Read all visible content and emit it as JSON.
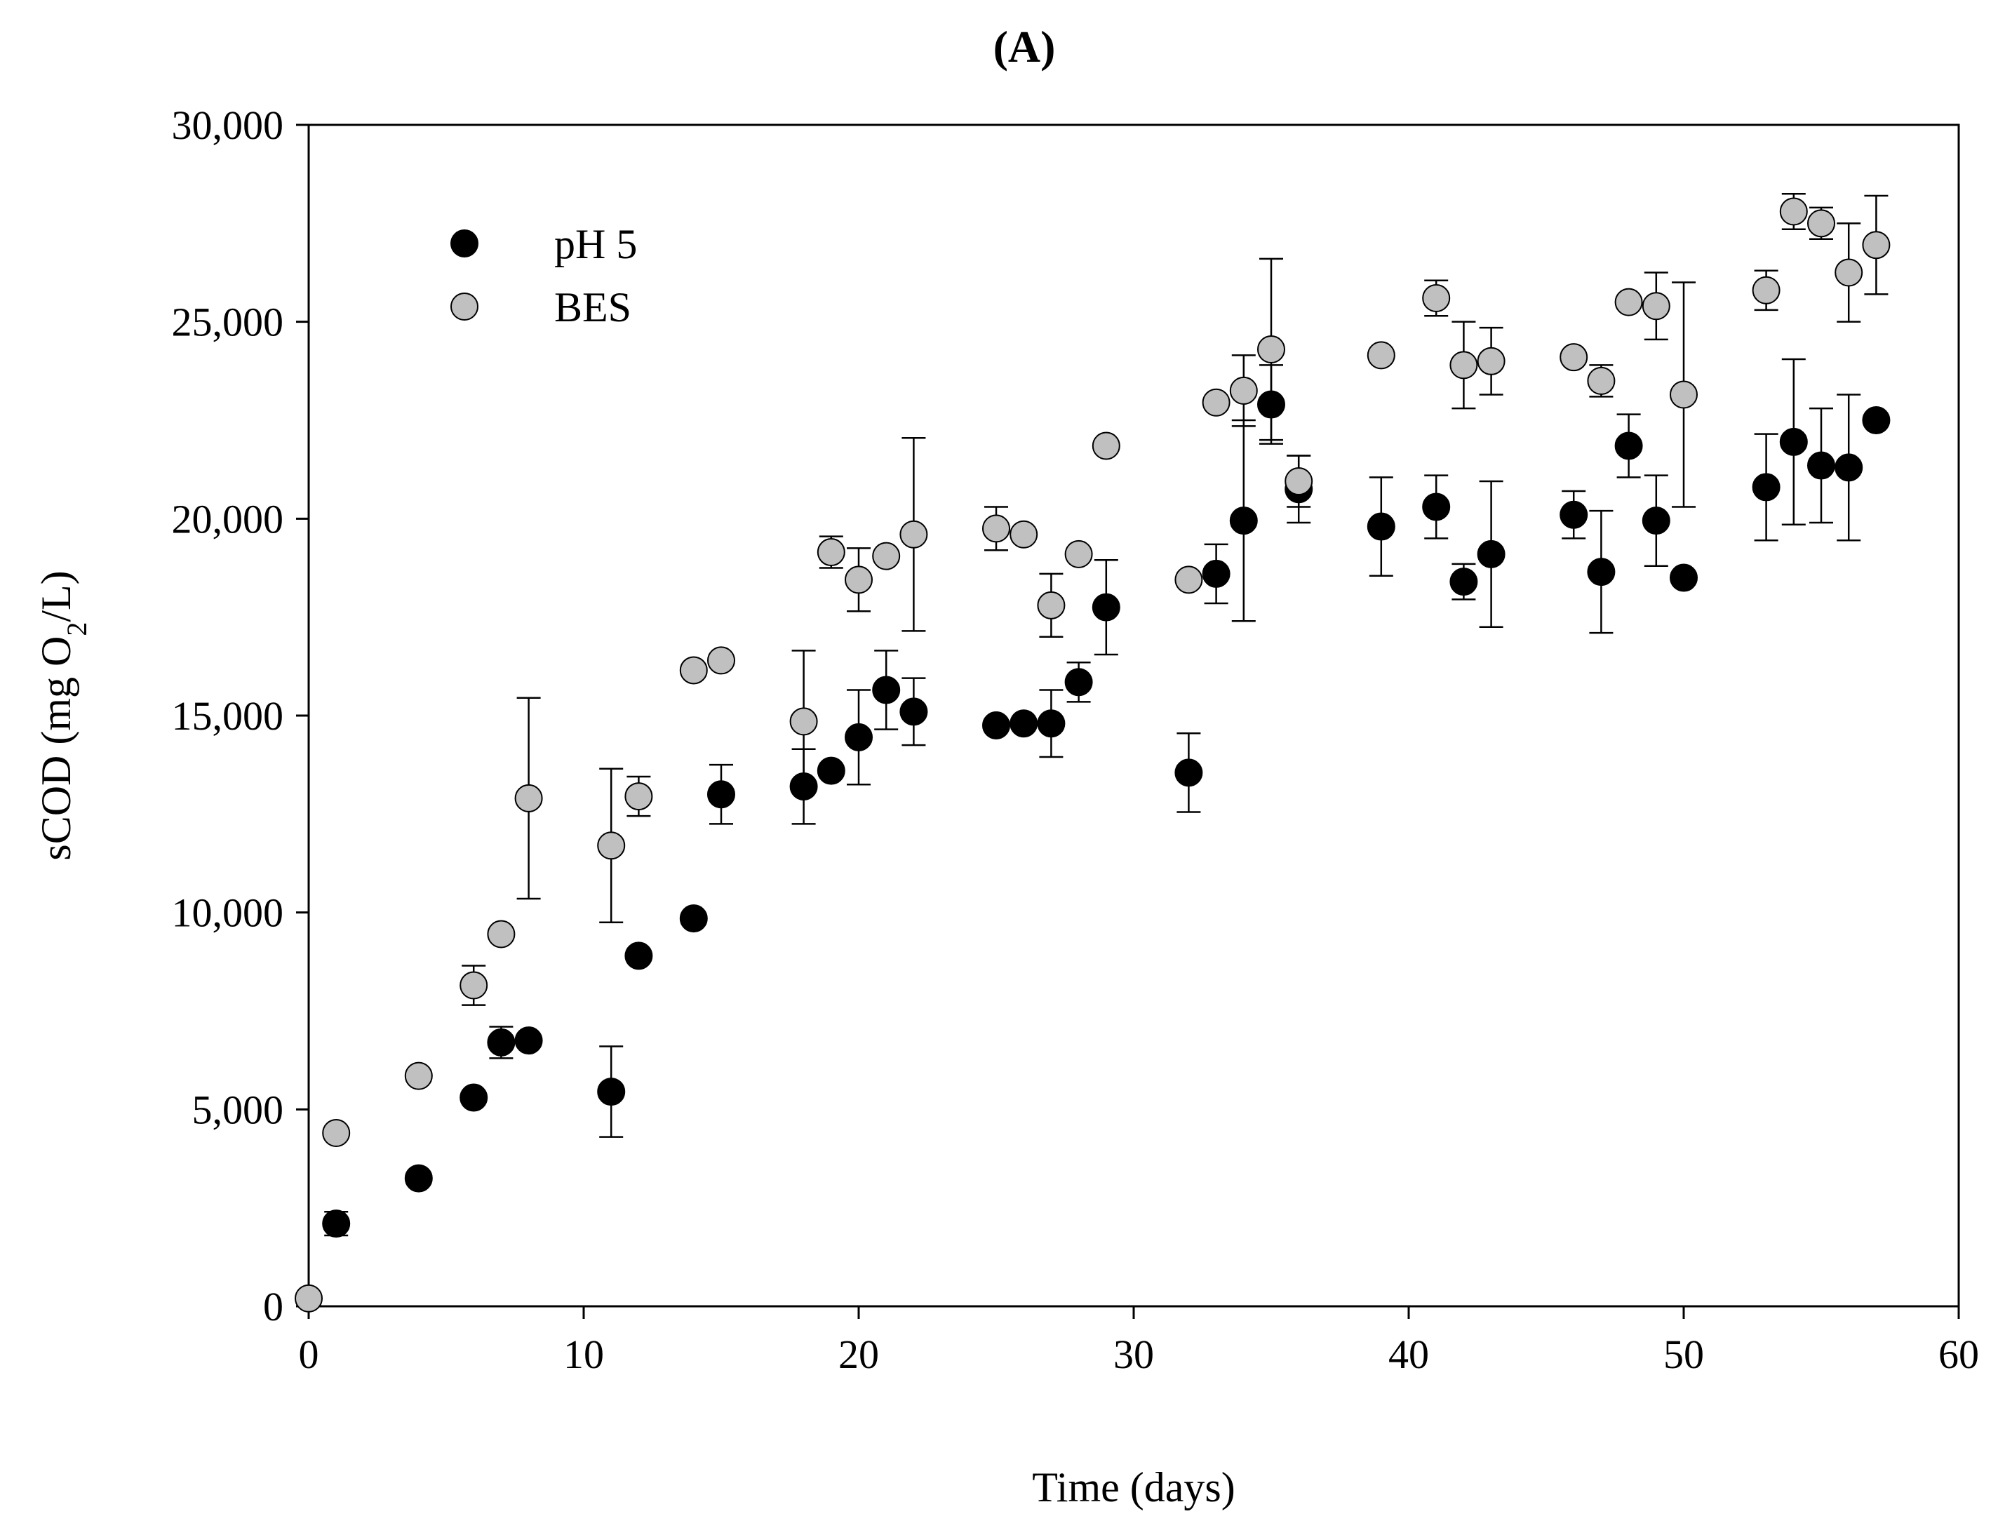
{
  "chart_data": {
    "type": "scatter",
    "panel_label": "(A)",
    "xlabel": "Time (days)",
    "ylabel": {
      "prefix": "sCOD (mg O",
      "subscript": "2",
      "suffix": "/L)"
    },
    "xlim": [
      0,
      60
    ],
    "ylim": [
      0,
      30000
    ],
    "x_ticks": [
      0,
      10,
      20,
      30,
      40,
      50,
      60
    ],
    "x_tick_labels": [
      "0",
      "10",
      "20",
      "30",
      "40",
      "50",
      "60"
    ],
    "y_ticks": [
      0,
      5000,
      10000,
      15000,
      20000,
      25000,
      30000
    ],
    "y_tick_labels": [
      "0",
      "5,000",
      "10,000",
      "15,000",
      "20,000",
      "25,000",
      "30,000"
    ],
    "legend_position": "top-left",
    "colors": {
      "ph5": "#000000",
      "bes": "#c0c0c0",
      "axis": "#000000"
    },
    "series": [
      {
        "name": "pH 5",
        "key": "ph5",
        "points": [
          {
            "x": 1,
            "y": 2100,
            "err": 300
          },
          {
            "x": 4,
            "y": 3250,
            "err": 0
          },
          {
            "x": 6,
            "y": 5300,
            "err": 0
          },
          {
            "x": 7,
            "y": 6700,
            "err": 400
          },
          {
            "x": 8,
            "y": 6750,
            "err": 0
          },
          {
            "x": 11,
            "y": 5450,
            "err": 1150
          },
          {
            "x": 12,
            "y": 8900,
            "err": 0
          },
          {
            "x": 14,
            "y": 9850,
            "err": 0
          },
          {
            "x": 15,
            "y": 13000,
            "err": 750
          },
          {
            "x": 18,
            "y": 13200,
            "err": 950
          },
          {
            "x": 19,
            "y": 13600,
            "err": 0
          },
          {
            "x": 20,
            "y": 14450,
            "err": 1200
          },
          {
            "x": 21,
            "y": 15650,
            "err": 1000
          },
          {
            "x": 22,
            "y": 15100,
            "err": 850
          },
          {
            "x": 25,
            "y": 14750,
            "err": 0
          },
          {
            "x": 26,
            "y": 14800,
            "err": 0
          },
          {
            "x": 27,
            "y": 14800,
            "err": 850
          },
          {
            "x": 28,
            "y": 15850,
            "err": 500
          },
          {
            "x": 29,
            "y": 17750,
            "err": 1200
          },
          {
            "x": 32,
            "y": 13550,
            "err": 1000
          },
          {
            "x": 33,
            "y": 18600,
            "err": 750
          },
          {
            "x": 34,
            "y": 19950,
            "err": 2550
          },
          {
            "x": 35,
            "y": 22900,
            "err": 1000
          },
          {
            "x": 36,
            "y": 20750,
            "err": 850
          },
          {
            "x": 39,
            "y": 19800,
            "err": 1250
          },
          {
            "x": 41,
            "y": 20300,
            "err": 800
          },
          {
            "x": 42,
            "y": 18400,
            "err": 450
          },
          {
            "x": 43,
            "y": 19100,
            "err": 1850
          },
          {
            "x": 46,
            "y": 20100,
            "err": 600
          },
          {
            "x": 47,
            "y": 18650,
            "err": 1550
          },
          {
            "x": 48,
            "y": 21850,
            "err": 800
          },
          {
            "x": 49,
            "y": 19950,
            "err": 1150
          },
          {
            "x": 50,
            "y": 18500,
            "err": 0
          },
          {
            "x": 53,
            "y": 20800,
            "err": 1350
          },
          {
            "x": 54,
            "y": 21950,
            "err": 2100
          },
          {
            "x": 55,
            "y": 21350,
            "err": 1450
          },
          {
            "x": 56,
            "y": 21300,
            "err": 1850
          },
          {
            "x": 57,
            "y": 22500,
            "err": 0
          }
        ]
      },
      {
        "name": "BES",
        "key": "bes",
        "points": [
          {
            "x": 0,
            "y": 200,
            "err": 0
          },
          {
            "x": 1,
            "y": 4400,
            "err": 0
          },
          {
            "x": 4,
            "y": 5850,
            "err": 0
          },
          {
            "x": 6,
            "y": 8150,
            "err": 500
          },
          {
            "x": 7,
            "y": 9450,
            "err": 0
          },
          {
            "x": 8,
            "y": 12900,
            "err": 2550
          },
          {
            "x": 11,
            "y": 11700,
            "err": 1950
          },
          {
            "x": 12,
            "y": 12950,
            "err": 500
          },
          {
            "x": 14,
            "y": 16150,
            "err": 0
          },
          {
            "x": 15,
            "y": 16400,
            "err": 0
          },
          {
            "x": 18,
            "y": 14850,
            "err": 1800
          },
          {
            "x": 19,
            "y": 19150,
            "err": 400
          },
          {
            "x": 20,
            "y": 18450,
            "err": 800
          },
          {
            "x": 21,
            "y": 19050,
            "err": 0
          },
          {
            "x": 22,
            "y": 19600,
            "err": 2450
          },
          {
            "x": 25,
            "y": 19750,
            "err": 550
          },
          {
            "x": 26,
            "y": 19600,
            "err": 0
          },
          {
            "x": 27,
            "y": 17800,
            "err": 800
          },
          {
            "x": 28,
            "y": 19100,
            "err": 0
          },
          {
            "x": 29,
            "y": 21850,
            "err": 0
          },
          {
            "x": 32,
            "y": 18450,
            "err": 0
          },
          {
            "x": 33,
            "y": 22950,
            "err": 0
          },
          {
            "x": 34,
            "y": 23250,
            "err": 900
          },
          {
            "x": 35,
            "y": 24300,
            "err": 2300
          },
          {
            "x": 36,
            "y": 20950,
            "err": 650
          },
          {
            "x": 39,
            "y": 24150,
            "err": 0
          },
          {
            "x": 41,
            "y": 25600,
            "err": 450
          },
          {
            "x": 42,
            "y": 23900,
            "err": 1100
          },
          {
            "x": 43,
            "y": 24000,
            "err": 850
          },
          {
            "x": 46,
            "y": 24100,
            "err": 0
          },
          {
            "x": 47,
            "y": 23500,
            "err": 400
          },
          {
            "x": 48,
            "y": 25500,
            "err": 0
          },
          {
            "x": 49,
            "y": 25400,
            "err": 850
          },
          {
            "x": 50,
            "y": 23150,
            "err": 2850
          },
          {
            "x": 53,
            "y": 25800,
            "err": 500
          },
          {
            "x": 54,
            "y": 27800,
            "err": 450
          },
          {
            "x": 55,
            "y": 27500,
            "err": 400
          },
          {
            "x": 56,
            "y": 26250,
            "err": 1250
          },
          {
            "x": 57,
            "y": 26950,
            "err": 1250
          }
        ]
      }
    ]
  }
}
